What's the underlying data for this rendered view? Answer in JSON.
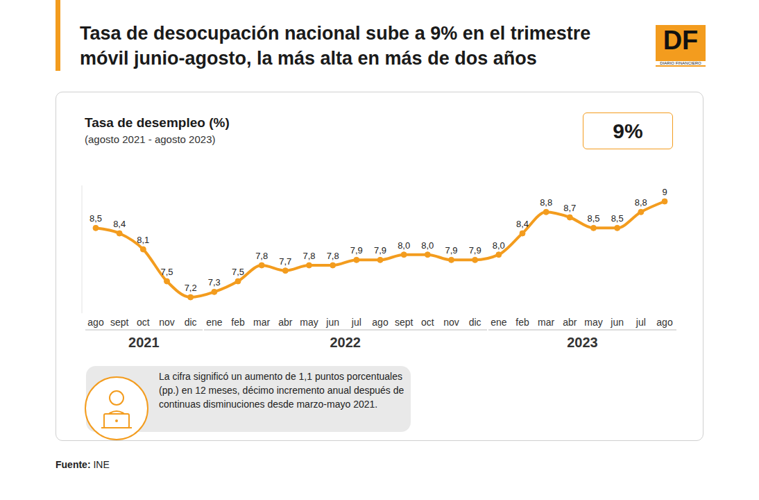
{
  "header": {
    "title": "Tasa de desocupación nacional sube a 9% en el trimestre móvil junio-agosto, la más alta en más de dos años",
    "logo": "DF",
    "logo_subtitle": "DIARIO FINANCIERO"
  },
  "chart_data": {
    "type": "line",
    "title": "Tasa de desempleo (%)",
    "subtitle": "(agosto 2021 - agosto 2023)",
    "highlight": "9%",
    "categories": [
      "ago",
      "sept",
      "oct",
      "nov",
      "dic",
      "ene",
      "feb",
      "mar",
      "abr",
      "may",
      "jun",
      "jul",
      "ago",
      "sept",
      "oct",
      "nov",
      "dic",
      "ene",
      "feb",
      "mar",
      "abr",
      "may",
      "jun",
      "jul",
      "ago"
    ],
    "values": [
      8.5,
      8.4,
      8.1,
      7.5,
      7.2,
      7.3,
      7.5,
      7.8,
      7.7,
      7.8,
      7.8,
      7.9,
      7.9,
      8.0,
      8.0,
      7.9,
      7.9,
      8.0,
      8.4,
      8.8,
      8.7,
      8.5,
      8.5,
      8.8,
      9
    ],
    "value_labels": [
      "8,5",
      "8,4",
      "8,1",
      "7,5",
      "7,2",
      "7,3",
      "7,5",
      "7,8",
      "7,7",
      "7,8",
      "7,8",
      "7,9",
      "7,9",
      "8,0",
      "8,0",
      "7,9",
      "7,9",
      "8,0",
      "8,4",
      "8,8",
      "8,7",
      "8,5",
      "8,5",
      "8,8",
      "9"
    ],
    "year_groups": [
      {
        "label": "2021",
        "span": 5
      },
      {
        "label": "2022",
        "span": 12
      },
      {
        "label": "2023",
        "span": 8
      }
    ],
    "color": "#f39c1e",
    "ylim": [
      6.9,
      9.3
    ],
    "tick_labels": "x",
    "grid": false,
    "data_labels": true,
    "marker": "circle",
    "annotation": "La cifra significó un aumento de 1,1 puntos porcentuales (pp.) en 12 meses, décimo incremento anual después de continuas disminuciones desde marzo-mayo 2021."
  },
  "footer": {
    "source_label": "Fuente:",
    "source": "INE"
  }
}
